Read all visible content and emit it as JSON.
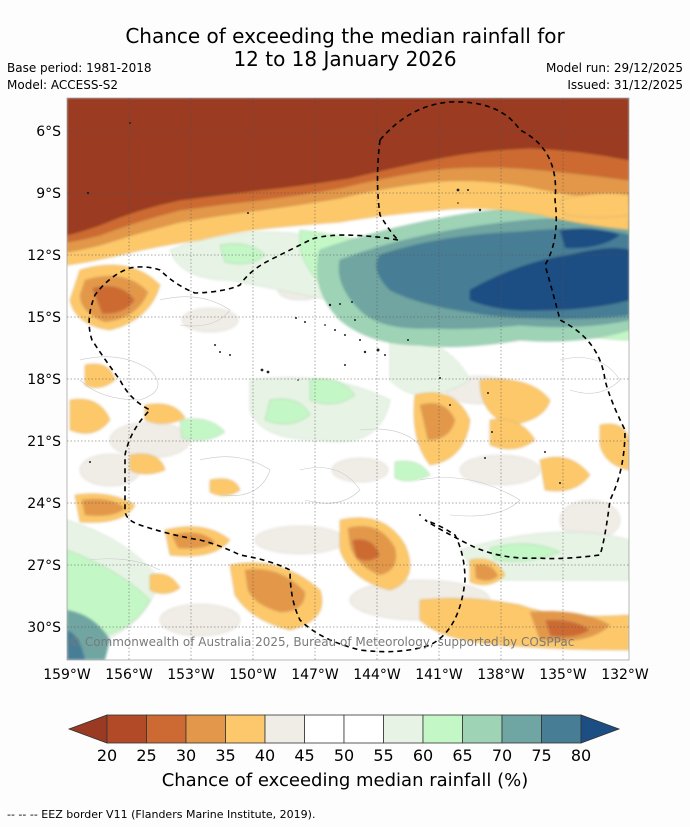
{
  "title_line1": "Chance of exceeding the median rainfall for",
  "title_line2": "12 to 18 January 2026",
  "base_period": "Base period: 1981-2018",
  "model": "Model: ACCESS-S2",
  "model_run": "Model run: 29/12/2025",
  "issued": "Issued: 31/12/2025",
  "y_ticks": [
    "6°S",
    "9°S",
    "12°S",
    "15°S",
    "18°S",
    "21°S",
    "24°S",
    "27°S",
    "30°S"
  ],
  "x_ticks": [
    "159°W",
    "156°W",
    "153°W",
    "150°W",
    "147°W",
    "144°W",
    "141°W",
    "138°W",
    "135°W",
    "132°W"
  ],
  "copyright": "© Commonwealth of Australia 2025, Bureau of Meteorology, supported by COSPPac",
  "colorbar": {
    "ticks": [
      "20",
      "25",
      "30",
      "35",
      "40",
      "45",
      "50",
      "55",
      "60",
      "65",
      "70",
      "75",
      "80"
    ],
    "colors": [
      "#9a3a22",
      "#b24a28",
      "#cd6a33",
      "#e3974a",
      "#fdc86b",
      "#f0ece6",
      "#ffffff",
      "#ffffff",
      "#e7f4e5",
      "#c4f7c6",
      "#9ed3b6",
      "#6fa5a2",
      "#477e96",
      "#1c4d83"
    ],
    "title": "Chance of exceeding median rainfall (%)"
  },
  "footer": "--  --  -- EEZ border V11 (Flanders Marine Institute, 2019)."
}
